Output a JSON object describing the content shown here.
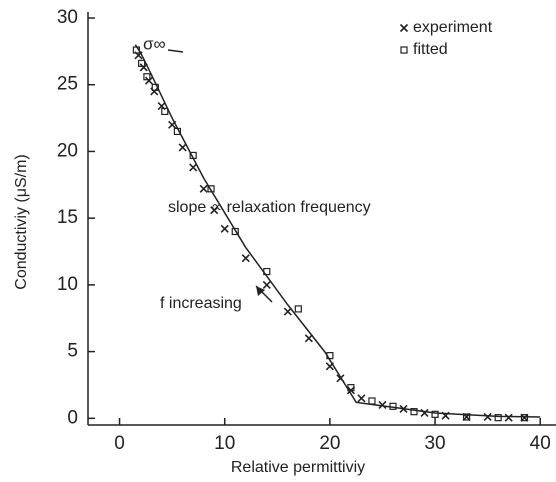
{
  "chart_data": {
    "type": "scatter",
    "x_label": "Relative permittiviy",
    "y_label": "Conductiviy (μS/m)",
    "annotations": [
      "σ∞",
      "slope ∝ relaxation frequency",
      "f increasing"
    ],
    "xlim": [
      -3,
      41.5
    ],
    "ylim": [
      -0.5,
      30
    ],
    "xticks": [
      0,
      10,
      20,
      30,
      40
    ],
    "yticks": [
      0,
      5,
      10,
      15,
      20,
      25,
      30
    ],
    "legend": "upper right",
    "series": [
      {
        "name": "experiment",
        "marker": "x",
        "color": "#222",
        "x": [
          1.8,
          2.3,
          2.8,
          3.3,
          4,
          5,
          6,
          7,
          8,
          9,
          10,
          12,
          14,
          16,
          18,
          20,
          21,
          22,
          23,
          25,
          27,
          29,
          31,
          33,
          35,
          37,
          38.5
        ],
        "values": [
          27.2,
          26.3,
          25.3,
          24.5,
          23.4,
          22,
          20.3,
          18.8,
          17.2,
          15.6,
          14.2,
          12,
          10,
          8,
          6,
          3.9,
          3,
          2.1,
          1.5,
          1,
          0.7,
          0.4,
          0.2,
          0.1,
          0.1,
          0.05,
          0.05
        ]
      },
      {
        "name": "fitted",
        "marker": "square",
        "color": "#222",
        "x": [
          1.6,
          2.1,
          2.6,
          3.4,
          4.3,
          5.5,
          7,
          8.7,
          11,
          14,
          17,
          20,
          22,
          24,
          26,
          28,
          30,
          33,
          36,
          38.5
        ],
        "values": [
          27.6,
          26.6,
          25.6,
          24.8,
          23,
          21.5,
          19.7,
          17.2,
          14,
          11,
          8.2,
          4.7,
          2.3,
          1.3,
          0.9,
          0.5,
          0.3,
          0.1,
          0.05,
          0.05
        ]
      },
      {
        "marker": "line",
        "color": "#222",
        "x": [
          1.5,
          2,
          3,
          5,
          8,
          12,
          16,
          19.5,
          22.5,
          30,
          36,
          40
        ],
        "values": [
          28,
          27.4,
          25.8,
          22.5,
          18,
          12.8,
          8.5,
          5,
          1.2,
          0.4,
          0.15,
          0.1
        ]
      }
    ]
  }
}
